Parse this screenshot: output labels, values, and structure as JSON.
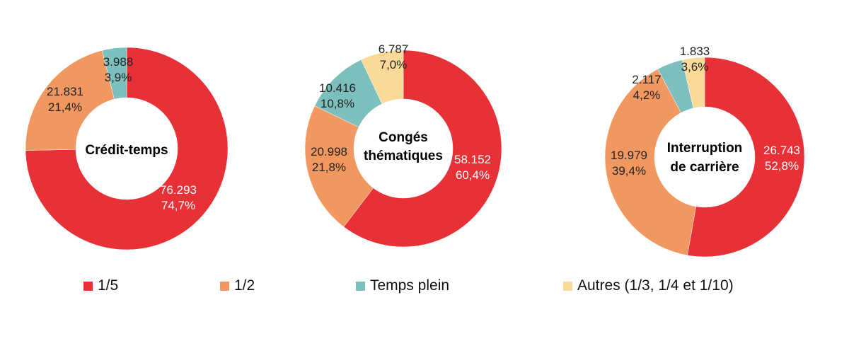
{
  "colors": {
    "part_1_5": "#e73137",
    "part_1_2": "#f0985f",
    "temps_plein": "#7dbfbd",
    "autres": "#fbd999"
  },
  "legend": [
    {
      "label": "1/5",
      "color": "#e73137"
    },
    {
      "label": "1/2",
      "color": "#f0985f"
    },
    {
      "label": "Temps plein",
      "color": "#7dbfbd"
    },
    {
      "label": "Autres (1/3, 1/4 et 1/10)",
      "color": "#fbd999"
    }
  ],
  "chart_data": [
    {
      "type": "pie",
      "title": "Crédit-temps",
      "slices": [
        {
          "name": "1/5",
          "value": 76293,
          "value_label": "76.293",
          "pct_label": "74,7%",
          "color": "#e73137",
          "label_color": "#ffffff"
        },
        {
          "name": "1/2",
          "value": 21831,
          "value_label": "21.831",
          "pct_label": "21,4%",
          "color": "#f0985f",
          "label_color": "#222222"
        },
        {
          "name": "Temps plein",
          "value": 3988,
          "value_label": "3.988",
          "pct_label": "3,9%",
          "color": "#7dbfbd",
          "label_color": "#222222"
        }
      ]
    },
    {
      "type": "pie",
      "title": "Congés thématiques",
      "title_lines": [
        "Congés",
        "thématiques"
      ],
      "slices": [
        {
          "name": "1/5",
          "value": 58152,
          "value_label": "58.152",
          "pct_label": "60,4%",
          "color": "#e73137",
          "label_color": "#ffffff"
        },
        {
          "name": "1/2",
          "value": 20998,
          "value_label": "20.998",
          "pct_label": "21,8%",
          "color": "#f0985f",
          "label_color": "#222222"
        },
        {
          "name": "Temps plein",
          "value": 10416,
          "value_label": "10.416",
          "pct_label": "10,8%",
          "color": "#7dbfbd",
          "label_color": "#222222"
        },
        {
          "name": "Autres (1/3, 1/4 et 1/10)",
          "value": 6787,
          "value_label": "6.787",
          "pct_label": "7,0%",
          "color": "#fbd999",
          "label_color": "#222222"
        }
      ]
    },
    {
      "type": "pie",
      "title": "Interruption de carrière",
      "title_lines": [
        "Interruption",
        "de carrière"
      ],
      "slices": [
        {
          "name": "1/5",
          "value": 26743,
          "value_label": "26.743",
          "pct_label": "52,8%",
          "color": "#e73137",
          "label_color": "#ffffff"
        },
        {
          "name": "1/2",
          "value": 19979,
          "value_label": "19.979",
          "pct_label": "39,4%",
          "color": "#f0985f",
          "label_color": "#222222"
        },
        {
          "name": "Temps plein",
          "value": 2117,
          "value_label": "2.117",
          "pct_label": "4,2%",
          "color": "#7dbfbd",
          "label_color": "#222222"
        },
        {
          "name": "Autres (1/3, 1/4 et 1/10)",
          "value": 1833,
          "value_label": "1.833",
          "pct_label": "3,6%",
          "color": "#fbd999",
          "label_color": "#222222"
        }
      ]
    }
  ]
}
